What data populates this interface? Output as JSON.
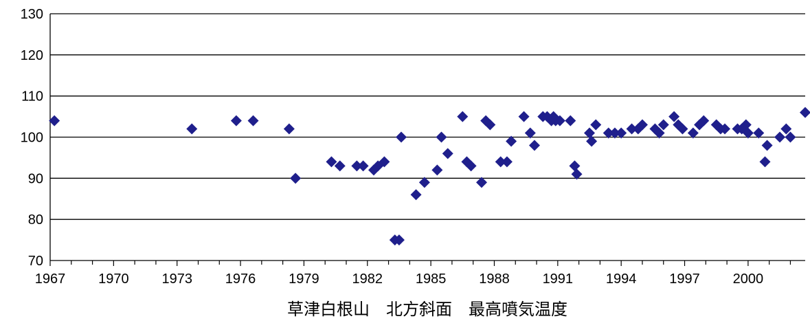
{
  "chart_data": {
    "type": "scatter",
    "title": "",
    "xlabel": "草津白根山　北方斜面　最高噴気温度",
    "ylabel": "",
    "xlim": [
      1967,
      2002.7
    ],
    "ylim": [
      70,
      130
    ],
    "x_ticks": [
      "1967",
      "1970",
      "1973",
      "1976",
      "1979",
      "1982",
      "1985",
      "1988",
      "1991",
      "1994",
      "1997",
      "2000"
    ],
    "y_ticks": [
      "70",
      "80",
      "90",
      "100",
      "110",
      "120",
      "130"
    ],
    "grid": "horizontal",
    "marker": "diamond",
    "series": [
      {
        "color": "#1f1f8c",
        "points": [
          [
            1967.2,
            104
          ],
          [
            1973.7,
            102
          ],
          [
            1975.8,
            104
          ],
          [
            1976.6,
            104
          ],
          [
            1978.3,
            102
          ],
          [
            1978.6,
            90
          ],
          [
            1980.3,
            94
          ],
          [
            1980.7,
            93
          ],
          [
            1981.5,
            93
          ],
          [
            1981.8,
            93
          ],
          [
            1982.3,
            92
          ],
          [
            1982.5,
            93
          ],
          [
            1982.8,
            94
          ],
          [
            1983.3,
            75
          ],
          [
            1983.5,
            75
          ],
          [
            1983.6,
            100
          ],
          [
            1984.3,
            86
          ],
          [
            1984.7,
            89
          ],
          [
            1985.3,
            92
          ],
          [
            1985.5,
            100
          ],
          [
            1985.8,
            96
          ],
          [
            1986.5,
            105
          ],
          [
            1986.7,
            94
          ],
          [
            1986.9,
            93
          ],
          [
            1987.4,
            89
          ],
          [
            1987.6,
            104
          ],
          [
            1987.8,
            103
          ],
          [
            1988.3,
            94
          ],
          [
            1988.6,
            94
          ],
          [
            1988.8,
            99
          ],
          [
            1989.4,
            105
          ],
          [
            1989.7,
            101
          ],
          [
            1989.9,
            98
          ],
          [
            1990.3,
            105
          ],
          [
            1990.5,
            105
          ],
          [
            1990.7,
            104
          ],
          [
            1990.8,
            105
          ],
          [
            1990.9,
            104
          ],
          [
            1991.1,
            104
          ],
          [
            1991.6,
            104
          ],
          [
            1991.8,
            93
          ],
          [
            1991.9,
            91
          ],
          [
            1992.5,
            101
          ],
          [
            1992.6,
            99
          ],
          [
            1992.8,
            103
          ],
          [
            1993.4,
            101
          ],
          [
            1993.7,
            101
          ],
          [
            1994.0,
            101
          ],
          [
            1994.5,
            102
          ],
          [
            1994.8,
            102
          ],
          [
            1995.0,
            103
          ],
          [
            1995.6,
            102
          ],
          [
            1995.8,
            101
          ],
          [
            1996.0,
            103
          ],
          [
            1996.5,
            105
          ],
          [
            1996.7,
            103
          ],
          [
            1996.9,
            102
          ],
          [
            1997.4,
            101
          ],
          [
            1997.7,
            103
          ],
          [
            1997.9,
            104
          ],
          [
            1998.5,
            103
          ],
          [
            1998.7,
            102
          ],
          [
            1998.9,
            102
          ],
          [
            1999.5,
            102
          ],
          [
            1999.7,
            102
          ],
          [
            1999.9,
            103
          ],
          [
            2000.0,
            101
          ],
          [
            2000.5,
            101
          ],
          [
            2000.8,
            94
          ],
          [
            2000.9,
            98
          ],
          [
            2001.5,
            100
          ],
          [
            2001.8,
            102
          ],
          [
            2002.0,
            100
          ],
          [
            2002.7,
            106
          ]
        ]
      }
    ]
  }
}
